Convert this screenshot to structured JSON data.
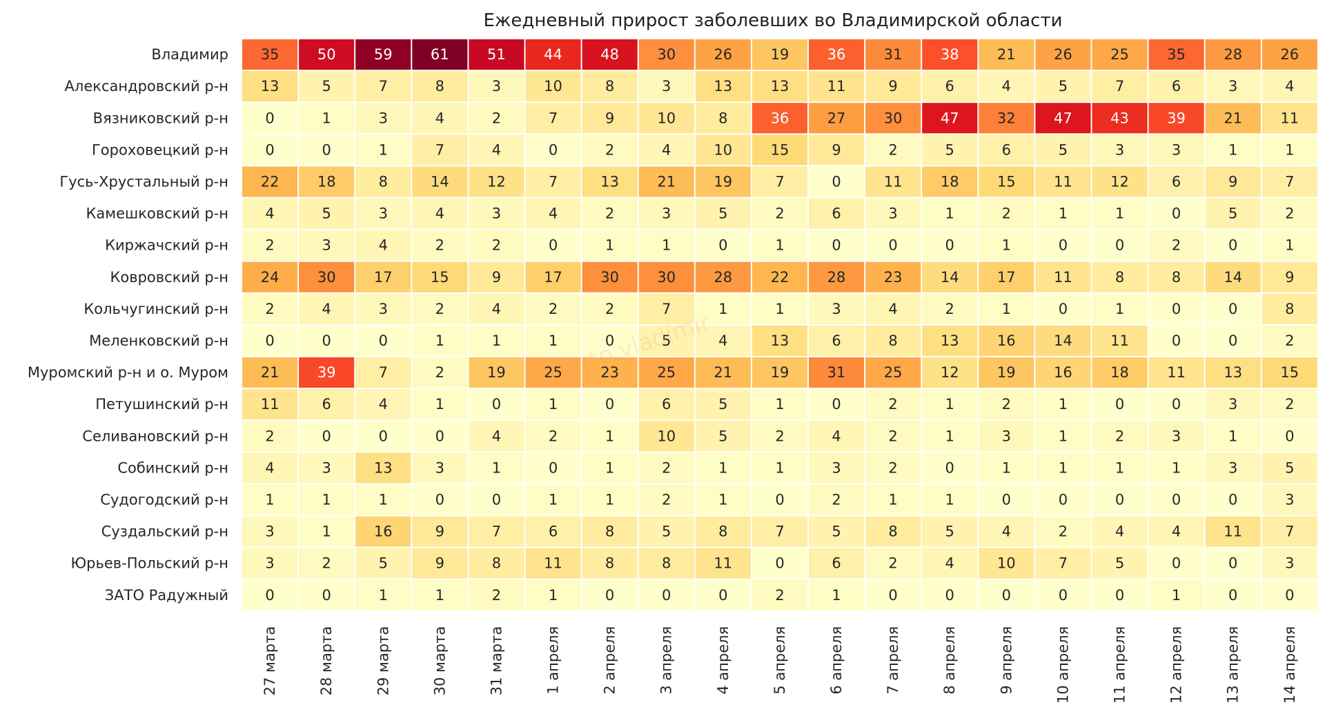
{
  "chart_data": {
    "type": "heatmap",
    "title": "Ежедневный прирост заболевших во Владимирской области",
    "watermark": "zrto.vladimir",
    "rows": [
      "Владимир",
      "Александровский р-н",
      "Вязниковский р-н",
      "Гороховецкий р-н",
      "Гусь-Хрустальный р-н",
      "Камешковский р-н",
      "Киржачский р-н",
      "Ковровский р-н",
      "Кольчугинский р-н",
      "Меленковский р-н",
      "Муромский р-н и о. Муром",
      "Петушинский р-н",
      "Селивановский р-н",
      "Собинский р-н",
      "Судогодский р-н",
      "Суздальский р-н",
      "Юрьев-Польский р-н",
      "ЗАТО Радужный"
    ],
    "columns": [
      "27 марта",
      "28 марта",
      "29 марта",
      "30 марта",
      "31 марта",
      "1 апреля",
      "2 апреля",
      "3 апреля",
      "4 апреля",
      "5 апреля",
      "6 апреля",
      "7 апреля",
      "8 апреля",
      "9 апреля",
      "10 апреля",
      "11 апреля",
      "12 апреля",
      "13 апреля",
      "14 апреля"
    ],
    "values": [
      [
        35,
        50,
        59,
        61,
        51,
        44,
        48,
        30,
        26,
        19,
        36,
        31,
        38,
        21,
        26,
        25,
        35,
        28,
        26
      ],
      [
        13,
        5,
        7,
        8,
        3,
        10,
        8,
        3,
        13,
        13,
        11,
        9,
        6,
        4,
        5,
        7,
        6,
        3,
        4
      ],
      [
        0,
        1,
        3,
        4,
        2,
        7,
        9,
        10,
        8,
        36,
        27,
        30,
        47,
        32,
        47,
        43,
        39,
        21,
        11
      ],
      [
        0,
        0,
        1,
        7,
        4,
        0,
        2,
        4,
        10,
        15,
        9,
        2,
        5,
        6,
        5,
        3,
        3,
        1,
        1
      ],
      [
        22,
        18,
        8,
        14,
        12,
        7,
        13,
        21,
        19,
        7,
        0,
        11,
        18,
        15,
        11,
        12,
        6,
        9,
        7
      ],
      [
        4,
        5,
        3,
        4,
        3,
        4,
        2,
        3,
        5,
        2,
        6,
        3,
        1,
        2,
        1,
        1,
        0,
        5,
        2
      ],
      [
        2,
        3,
        4,
        2,
        2,
        0,
        1,
        1,
        0,
        1,
        0,
        0,
        0,
        1,
        0,
        0,
        2,
        0,
        1
      ],
      [
        24,
        30,
        17,
        15,
        9,
        17,
        30,
        30,
        28,
        22,
        28,
        23,
        14,
        17,
        11,
        8,
        8,
        14,
        9
      ],
      [
        2,
        4,
        3,
        2,
        4,
        2,
        2,
        7,
        1,
        1,
        3,
        4,
        2,
        1,
        0,
        1,
        0,
        0,
        8
      ],
      [
        0,
        0,
        0,
        1,
        1,
        1,
        0,
        5,
        4,
        13,
        6,
        8,
        13,
        16,
        14,
        11,
        0,
        0,
        2
      ],
      [
        21,
        39,
        7,
        2,
        19,
        25,
        23,
        25,
        21,
        19,
        31,
        25,
        12,
        19,
        16,
        18,
        11,
        13,
        15
      ],
      [
        11,
        6,
        4,
        1,
        0,
        1,
        0,
        6,
        5,
        1,
        0,
        2,
        1,
        2,
        1,
        0,
        0,
        3,
        2
      ],
      [
        2,
        0,
        0,
        0,
        4,
        2,
        1,
        10,
        5,
        2,
        4,
        2,
        1,
        3,
        1,
        2,
        3,
        1,
        0
      ],
      [
        4,
        3,
        13,
        3,
        1,
        0,
        1,
        2,
        1,
        1,
        3,
        2,
        0,
        1,
        1,
        1,
        1,
        3,
        5
      ],
      [
        1,
        1,
        1,
        0,
        0,
        1,
        1,
        2,
        1,
        0,
        2,
        1,
        1,
        0,
        0,
        0,
        0,
        0,
        3
      ],
      [
        3,
        1,
        16,
        9,
        7,
        6,
        8,
        5,
        8,
        7,
        5,
        8,
        5,
        4,
        2,
        4,
        4,
        11,
        7
      ],
      [
        3,
        2,
        5,
        9,
        8,
        11,
        8,
        8,
        11,
        0,
        6,
        2,
        4,
        10,
        7,
        5,
        0,
        0,
        3
      ],
      [
        0,
        0,
        1,
        1,
        2,
        1,
        0,
        0,
        0,
        2,
        1,
        0,
        0,
        0,
        0,
        0,
        1,
        0,
        0
      ]
    ],
    "value_range": [
      0,
      61
    ],
    "colormap": "YlOrRd",
    "colors": {
      "scale": [
        "#ffffcc",
        "#ffeda0",
        "#fed976",
        "#feb24c",
        "#fd8d3c",
        "#fc4e2a",
        "#e31a1c",
        "#bd0026",
        "#800026"
      ],
      "text_dark": "#262626",
      "text_light": "#ffffff",
      "gridline": "#ffffff"
    }
  }
}
